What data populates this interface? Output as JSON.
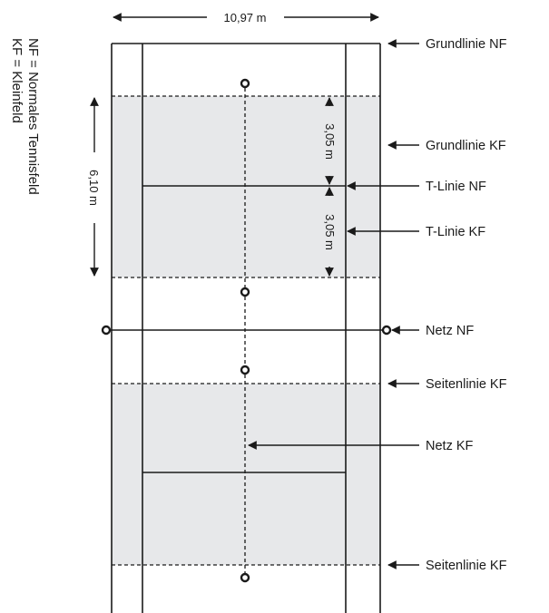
{
  "dimensions": {
    "width_label": "10,97 m",
    "height_label": "6,10 m",
    "segment_label_upper": "3,05 m",
    "segment_label_lower": "3,05 m"
  },
  "labels": {
    "grundlinie_nf": "Grundlinie NF",
    "grundlinie_kf": "Grundlinie KF",
    "t_linie_nf": "T-Linie NF",
    "t_linie_kf": "T-Linie KF",
    "netz_nf": "Netz NF",
    "seitenlinie_kf_upper": "Seitenlinie KF",
    "netz_kf": "Netz KF",
    "seitenlinie_kf_lower": "Seitenlinie KF"
  },
  "legend": {
    "line1": "NF = Normales Tennisfeld",
    "line2": "KF = Kleinfeld"
  },
  "colors": {
    "shading": "#e7e8ea",
    "line": "#1a1a1a"
  }
}
